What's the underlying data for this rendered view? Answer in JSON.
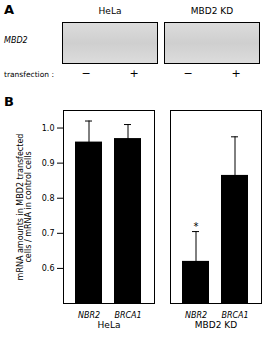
{
  "chart_data": {
    "type": "bar",
    "panel_labels": [
      "A",
      "B"
    ],
    "blot": {
      "columns": [
        "HeLa",
        "MBD2 KD"
      ],
      "row_label": "MBD2",
      "lane_label": "transfection :",
      "lanes": [
        "−",
        "+",
        "−",
        "+"
      ]
    },
    "categories": [
      "NBR2",
      "BRCA1",
      "NBR2",
      "BRCA1"
    ],
    "groups": [
      "HeLa",
      "HeLa",
      "MBD2 KD",
      "MBD2 KD"
    ],
    "values": [
      0.96,
      0.97,
      0.62,
      0.865
    ],
    "errors": [
      0.06,
      0.04,
      0.085,
      0.11
    ],
    "significance": [
      null,
      null,
      "*",
      null
    ],
    "colors": [
      "#000000",
      "#000000",
      "#000000",
      "#000000"
    ],
    "ylabel": "mRNA amounts in MBD2 transfected\ncells / mRNA in control cells",
    "ylim": [
      0.5,
      1.05
    ],
    "yticks": [
      0.6,
      0.7,
      0.8,
      0.9,
      {
        "value": 1.0,
        "label": "1.0"
      }
    ],
    "grid": false
  }
}
